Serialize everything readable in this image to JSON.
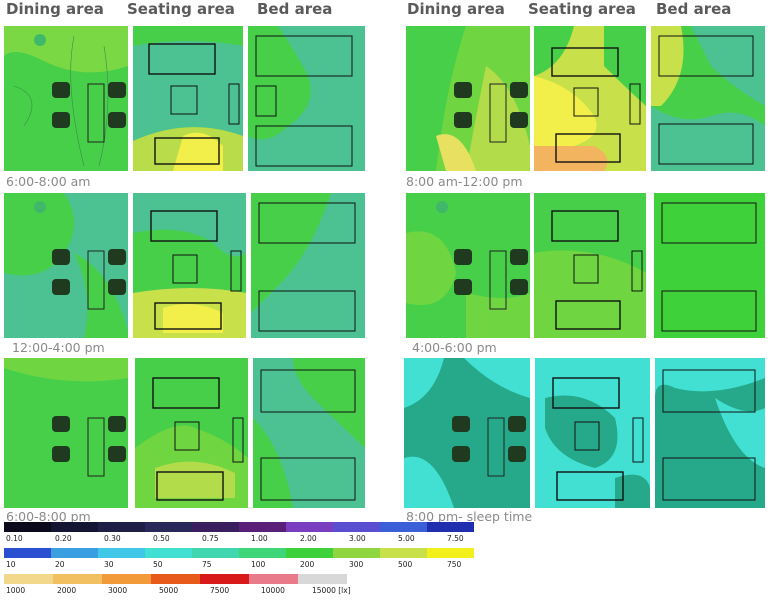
{
  "headers": {
    "dining": "Dining area",
    "seating": "Seating area",
    "bed": "Bed area"
  },
  "times": [
    "6:00-8:00 am",
    "8:00 am-12:00 pm",
    "12:00-4:00 pm",
    "4:00-6:00 pm",
    "6:00-8:00 pm",
    "8:00 pm- sleep time"
  ],
  "palette": {
    "green": "#3fd13a",
    "lime": "#6fd641",
    "yellowgreen": "#b3dc4a",
    "yellow": "#f2ef4a",
    "orange": "#f2b45e",
    "teal": "#4cc293",
    "cyan": "#41e0d2",
    "darkteal": "#26a98a"
  },
  "legend": {
    "row1": {
      "labels": [
        "0.10",
        "0.20",
        "0.30",
        "0.50",
        "0.75",
        "1.00",
        "2.00",
        "3.00",
        "5.00",
        "7.50"
      ],
      "colors": [
        "#0a0a1a",
        "#141433",
        "#1e1e46",
        "#28285a",
        "#3a1f5f",
        "#5a1f78",
        "#7a3fc0",
        "#5a4fd0",
        "#3a5fd8",
        "#1f2fb0"
      ]
    },
    "row2": {
      "labels": [
        "10",
        "20",
        "30",
        "50",
        "75",
        "100",
        "200",
        "300",
        "500",
        "750"
      ],
      "colors": [
        "#2a4fd0",
        "#3a9fe0",
        "#41c8e8",
        "#41e0d2",
        "#3fd6b0",
        "#3fd67a",
        "#3fd13a",
        "#8fd641",
        "#c8e04a",
        "#f2ef1a"
      ]
    },
    "row3": {
      "labels": [
        "1000",
        "2000",
        "3000",
        "5000",
        "7500",
        "10000",
        "15000 [lx]"
      ],
      "colors": [
        "#f2d88a",
        "#f2c060",
        "#f29a3a",
        "#e85a1a",
        "#d81a1a",
        "#e87a8a",
        "#d8d8d8"
      ]
    }
  }
}
